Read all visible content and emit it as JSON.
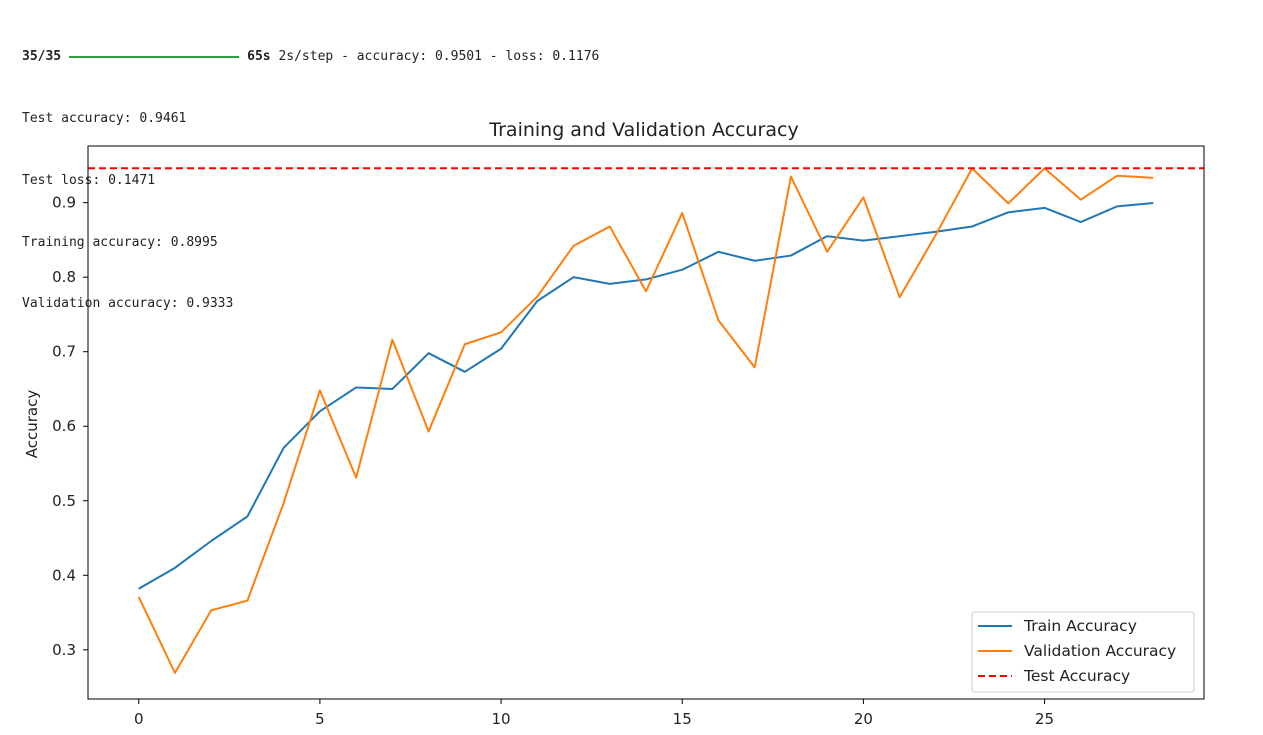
{
  "console": {
    "step_count": "35/35",
    "progress_fraction": 1.0,
    "elapsed": "65s",
    "step_metrics": " 2s/step - accuracy: 0.9501 - loss: 0.1176",
    "lines": [
      "Test accuracy: 0.9461",
      "Test loss: 0.1471",
      "Training accuracy: 0.8995",
      "Validation accuracy: 0.9333"
    ],
    "colors": {
      "progress": "#2e9e3e"
    }
  },
  "chart_data": {
    "type": "line",
    "title": "Training and Validation Accuracy",
    "xlabel": "",
    "ylabel": "Accuracy",
    "xlim": [
      -1.4,
      29.4
    ],
    "ylim": [
      0.234,
      0.976
    ],
    "xticks": [
      0,
      5,
      10,
      15,
      20,
      25
    ],
    "yticks": [
      0.3,
      0.4,
      0.5,
      0.6,
      0.7,
      0.8,
      0.9
    ],
    "grid": false,
    "legend_position": "lower-right",
    "x": [
      0,
      1,
      2,
      3,
      4,
      5,
      6,
      7,
      8,
      9,
      10,
      11,
      12,
      13,
      14,
      15,
      16,
      17,
      18,
      19,
      20,
      21,
      22,
      23,
      24,
      25,
      26,
      27,
      28
    ],
    "series": [
      {
        "name": "Train Accuracy",
        "color": "#1f77b4",
        "style": "solid",
        "values": [
          0.382,
          0.41,
          0.446,
          0.479,
          0.571,
          0.62,
          0.652,
          0.65,
          0.698,
          0.673,
          0.704,
          0.768,
          0.8,
          0.791,
          0.797,
          0.81,
          0.834,
          0.822,
          0.829,
          0.855,
          0.849,
          0.855,
          0.861,
          0.868,
          0.887,
          0.893,
          0.874,
          0.895,
          0.8995
        ]
      },
      {
        "name": "Validation Accuracy",
        "color": "#ff7f0e",
        "style": "solid",
        "values": [
          0.371,
          0.269,
          0.353,
          0.366,
          0.497,
          0.648,
          0.531,
          0.716,
          0.593,
          0.71,
          0.726,
          0.774,
          0.842,
          0.868,
          0.781,
          0.886,
          0.742,
          0.679,
          0.935,
          0.834,
          0.907,
          0.773,
          0.857,
          0.946,
          0.899,
          0.946,
          0.904,
          0.936,
          0.9333
        ]
      },
      {
        "name": "Test Accuracy",
        "color": "#ff0000",
        "style": "dashed",
        "constant": 0.9461
      }
    ]
  }
}
